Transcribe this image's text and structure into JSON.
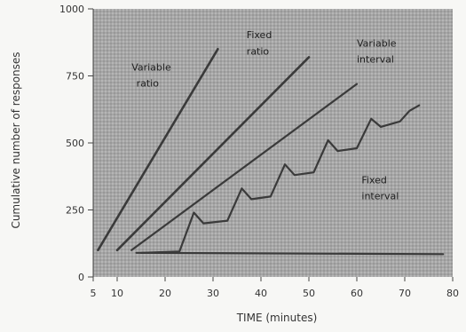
{
  "chart_data": {
    "type": "line",
    "xlabel": "TIME (minutes)",
    "ylabel": "Cumulative number of responses",
    "xlim": [
      5,
      80
    ],
    "ylim": [
      0,
      1000
    ],
    "x_ticks": [
      "5",
      "10",
      "20",
      "30",
      "40",
      "50",
      "60",
      "70",
      "80"
    ],
    "y_ticks": [
      "0",
      "250",
      "500",
      "750",
      "1000"
    ],
    "grid": false,
    "background": "#a9a9a9",
    "line_color": "#3a3a3a",
    "series": [
      {
        "name": "Variable ratio",
        "points": [
          [
            6,
            100
          ],
          [
            31,
            850
          ]
        ]
      },
      {
        "name": "Fixed ratio",
        "points": [
          [
            10,
            100
          ],
          [
            50,
            820
          ]
        ]
      },
      {
        "name": "Variable interval",
        "points": [
          [
            13,
            100
          ],
          [
            60,
            720
          ]
        ]
      },
      {
        "name": "Fixed interval",
        "points": [
          [
            15,
            90
          ],
          [
            23,
            95
          ],
          [
            26,
            240
          ],
          [
            28,
            200
          ],
          [
            33,
            210
          ],
          [
            36,
            330
          ],
          [
            38,
            290
          ],
          [
            42,
            300
          ],
          [
            45,
            420
          ],
          [
            47,
            380
          ],
          [
            51,
            390
          ],
          [
            54,
            510
          ],
          [
            56,
            470
          ],
          [
            60,
            480
          ],
          [
            63,
            590
          ],
          [
            65,
            560
          ],
          [
            69,
            580
          ],
          [
            71,
            620
          ],
          [
            73,
            640
          ]
        ]
      },
      {
        "name": "",
        "points": [
          [
            14,
            90
          ],
          [
            78,
            85
          ]
        ]
      }
    ],
    "annotations": [
      {
        "text": "Variable",
        "x": 13,
        "y": 770
      },
      {
        "text": "ratio",
        "x": 14,
        "y": 710
      },
      {
        "text": "Fixed",
        "x": 37,
        "y": 890
      },
      {
        "text": "ratio",
        "x": 37,
        "y": 830
      },
      {
        "text": "Variable",
        "x": 60,
        "y": 860
      },
      {
        "text": "interval",
        "x": 60,
        "y": 800
      },
      {
        "text": "Fixed",
        "x": 61,
        "y": 350
      },
      {
        "text": "interval",
        "x": 61,
        "y": 290
      }
    ]
  }
}
